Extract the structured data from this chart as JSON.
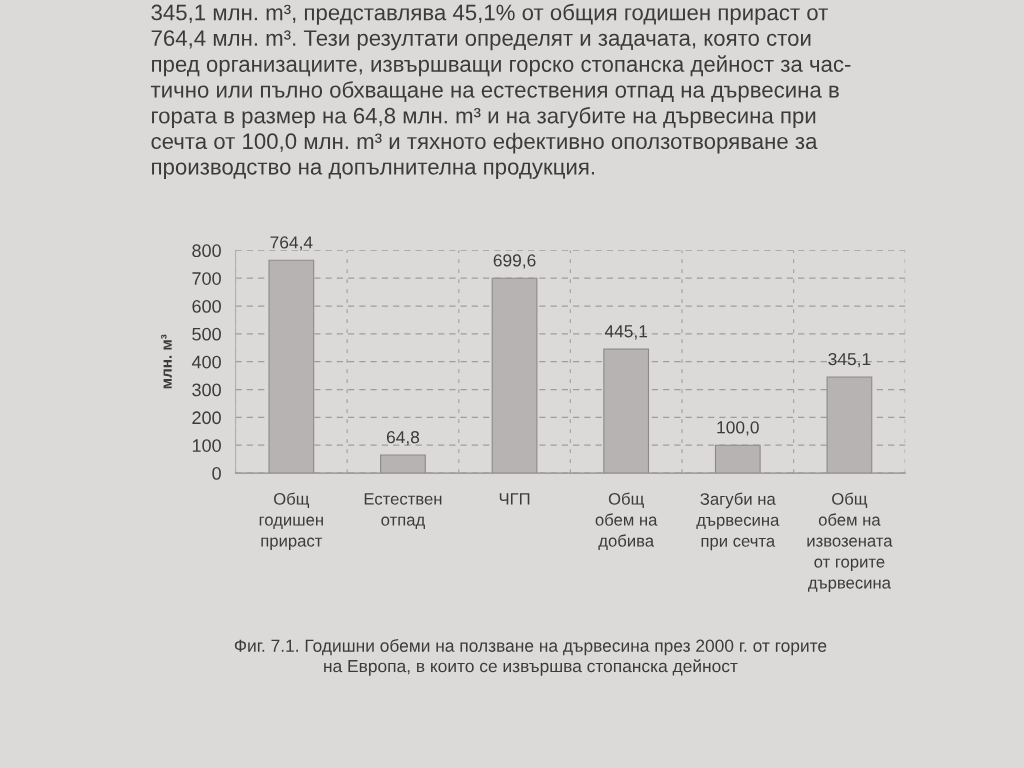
{
  "chart_data": {
    "type": "bar",
    "categories": [
      "Общ\nгодишен\nприраст",
      "Естествен\nотпад",
      "ЧГП",
      "Общ\nобем на\nдобива",
      "Загуби на\nдървесина\nпри сечта",
      "Общ\nобем на\nизвозената\nот горите\nдървесина"
    ],
    "values": [
      764.4,
      64.8,
      699.6,
      445.1,
      100.0,
      345.1
    ],
    "value_labels": [
      "764,4",
      "64,8",
      "699,6",
      "445,1",
      "100,0",
      "345,1"
    ],
    "color": "#b8b3b3",
    "ylabel": "млн. м³",
    "ylim": [
      0,
      800
    ],
    "yticks": [
      0,
      100,
      200,
      300,
      400,
      500,
      600,
      700,
      800
    ],
    "grid": true,
    "annotations": [
      "345,1 млн. m³, представлява 45,1% от общия годишен прираст от\n764,4 млн. m³. Тези резултати определят и задачата, която стои\nпред организациите, извършващи горско стопанска дейност за час-\nтично или пълно обхващане на естествения отпад на дървесина в\nгората в размер на 64,8 млн. m³ и на загубите на дървесина при\nсечта от 100,0 млн. m³ и тяхното ефективно оползотворяване за\nпроизводство на допълнителна продукция.",
      "Фиг. 7.1. Годишни обеми на ползване на дървесина през 2000 г. от горите\nна Европа, в които се извършва стопанска дейност"
    ]
  }
}
